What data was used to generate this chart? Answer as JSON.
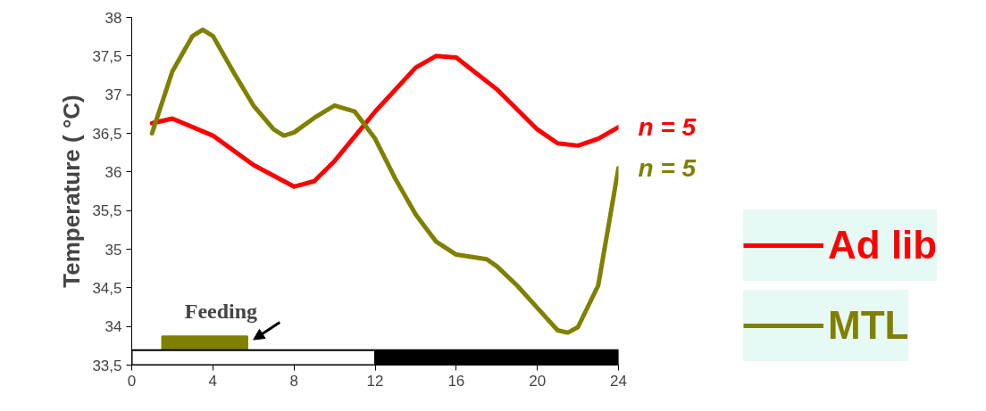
{
  "chart_data": {
    "type": "line",
    "ylabel": "Temperature ( °C)",
    "xlim": [
      0,
      24
    ],
    "xticks": [
      0,
      4,
      8,
      12,
      16,
      20,
      24
    ],
    "ylim": [
      33.5,
      38
    ],
    "yticks": [
      {
        "value": 33.5,
        "label": "33,5"
      },
      34,
      {
        "value": 34.5,
        "label": "34,5"
      },
      35,
      {
        "value": 35.5,
        "label": "35,5"
      },
      36,
      {
        "value": 36.5,
        "label": "36,5"
      },
      37,
      {
        "value": 37.5,
        "label": "37,5"
      },
      38
    ],
    "grid": false,
    "legend": "right",
    "marker": "none",
    "line_style": "solid",
    "series": [
      {
        "name": "Ad lib",
        "color": "#ff0000",
        "x": [
          1,
          2,
          4,
          6,
          8,
          9,
          10,
          12,
          14,
          15,
          16,
          18,
          20,
          21,
          22,
          23,
          24
        ],
        "values": [
          36.63,
          36.69,
          36.47,
          36.09,
          35.81,
          35.88,
          36.14,
          36.78,
          37.35,
          37.5,
          37.48,
          37.07,
          36.55,
          36.37,
          36.34,
          36.43,
          36.58
        ]
      },
      {
        "name": "MTL",
        "color": "#808000",
        "x": [
          1,
          2,
          3,
          3.5,
          4,
          5,
          6,
          7,
          7.5,
          8,
          9,
          10,
          11,
          12,
          13,
          14,
          15,
          16,
          17.5,
          18,
          19,
          20,
          21,
          21.5,
          22,
          23,
          24
        ],
        "values": [
          36.5,
          37.3,
          37.76,
          37.84,
          37.76,
          37.3,
          36.86,
          36.55,
          36.47,
          36.51,
          36.7,
          36.86,
          36.78,
          36.43,
          35.91,
          35.45,
          35.1,
          34.93,
          34.87,
          34.78,
          34.53,
          34.24,
          33.95,
          33.92,
          33.99,
          34.53,
          36.05
        ]
      }
    ],
    "annotations": [
      {
        "text": "n = 5",
        "x": 24,
        "y": 36.58
      },
      {
        "text": "n = 5",
        "x": 24,
        "y": 36.05
      }
    ],
    "bands": [
      {
        "axis": "x",
        "from": 0,
        "to": 12,
        "color": "#ffffff"
      },
      {
        "axis": "x",
        "from": 12,
        "to": 24,
        "color": "#000000"
      },
      {
        "axis": "x",
        "from": 1.5,
        "to": 5.7,
        "color": "#808000",
        "label": "Feeding"
      }
    ]
  }
}
